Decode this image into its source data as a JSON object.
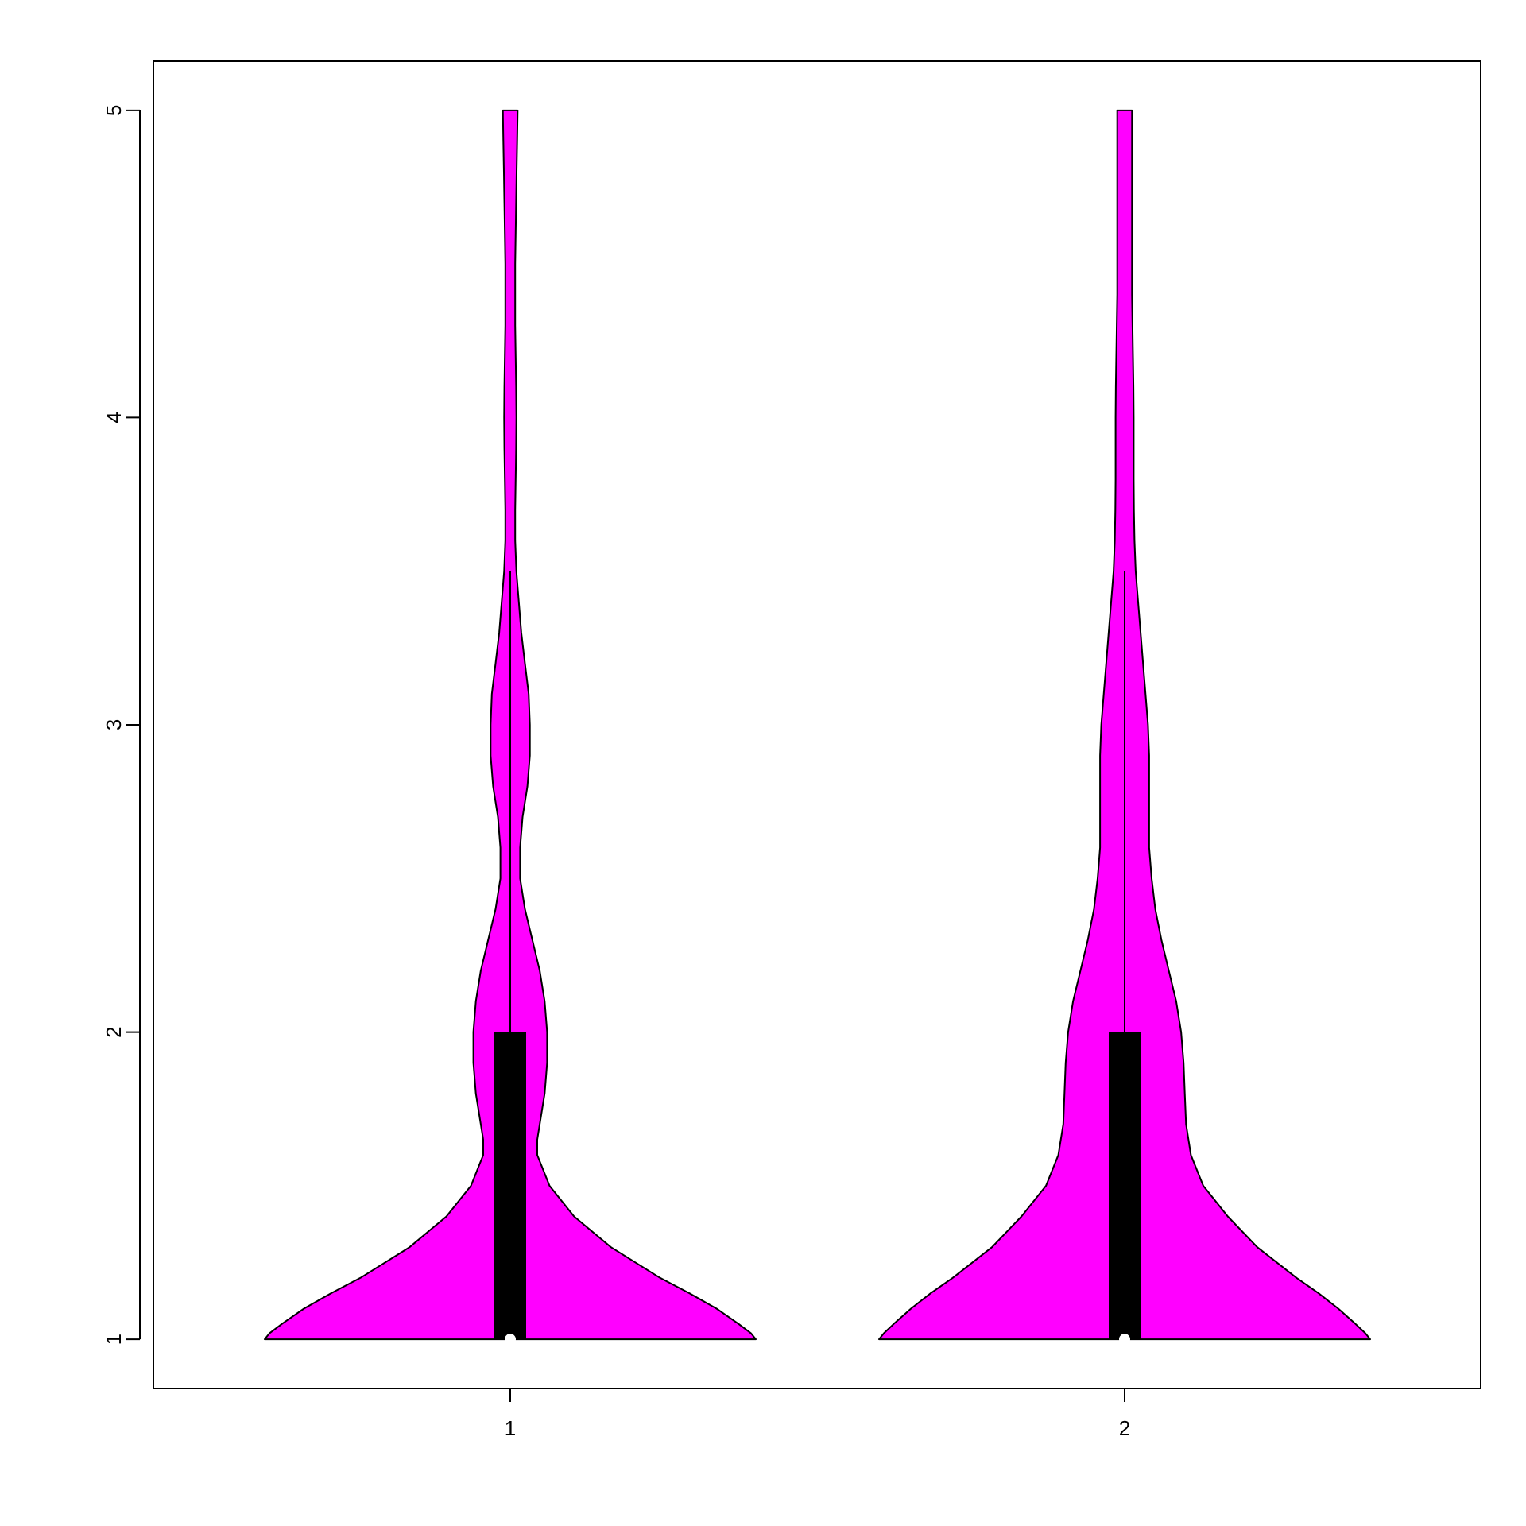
{
  "chart_data": {
    "type": "violin",
    "title": "",
    "xlabel": "",
    "ylabel": "",
    "categories": [
      "1",
      "2"
    ],
    "x_ticks": [
      "1",
      "2"
    ],
    "y_ticks": [
      "1",
      "2",
      "3",
      "4",
      "5"
    ],
    "ylim": [
      0.84,
      5.16
    ],
    "grid": false,
    "colors": {
      "fill": "#FF00FF",
      "outline": "#000000",
      "box": "#000000",
      "median": "#FFFFFF"
    },
    "series": [
      {
        "category": "1",
        "summary": {
          "min": 1,
          "q1": 1,
          "median": 1,
          "q3": 2,
          "whisker_high": 3.5,
          "max": 5
        },
        "density": [
          [
            1.0,
            1.0
          ],
          [
            1.02,
            0.98
          ],
          [
            1.05,
            0.93
          ],
          [
            1.1,
            0.84
          ],
          [
            1.15,
            0.73
          ],
          [
            1.2,
            0.61
          ],
          [
            1.3,
            0.41
          ],
          [
            1.4,
            0.26
          ],
          [
            1.5,
            0.16
          ],
          [
            1.6,
            0.11
          ],
          [
            1.65,
            0.11
          ],
          [
            1.7,
            0.12
          ],
          [
            1.8,
            0.14
          ],
          [
            1.9,
            0.15
          ],
          [
            2.0,
            0.15
          ],
          [
            2.1,
            0.14
          ],
          [
            2.2,
            0.12
          ],
          [
            2.3,
            0.09
          ],
          [
            2.4,
            0.06
          ],
          [
            2.5,
            0.04
          ],
          [
            2.6,
            0.04
          ],
          [
            2.7,
            0.05
          ],
          [
            2.8,
            0.07
          ],
          [
            2.9,
            0.08
          ],
          [
            3.0,
            0.08
          ],
          [
            3.1,
            0.075
          ],
          [
            3.2,
            0.06
          ],
          [
            3.3,
            0.045
          ],
          [
            3.4,
            0.035
          ],
          [
            3.5,
            0.025
          ],
          [
            3.6,
            0.02
          ],
          [
            3.7,
            0.02
          ],
          [
            3.8,
            0.022
          ],
          [
            3.9,
            0.024
          ],
          [
            4.0,
            0.025
          ],
          [
            4.1,
            0.024
          ],
          [
            4.2,
            0.022
          ],
          [
            4.3,
            0.02
          ],
          [
            4.4,
            0.02
          ],
          [
            4.5,
            0.02
          ],
          [
            4.6,
            0.022
          ],
          [
            4.7,
            0.024
          ],
          [
            4.8,
            0.026
          ],
          [
            4.9,
            0.028
          ],
          [
            5.0,
            0.03
          ]
        ]
      },
      {
        "category": "2",
        "summary": {
          "min": 1,
          "q1": 1,
          "median": 1,
          "q3": 2,
          "whisker_high": 3.5,
          "max": 5
        },
        "density": [
          [
            1.0,
            1.0
          ],
          [
            1.02,
            0.98
          ],
          [
            1.05,
            0.94
          ],
          [
            1.1,
            0.87
          ],
          [
            1.15,
            0.79
          ],
          [
            1.2,
            0.7
          ],
          [
            1.3,
            0.54
          ],
          [
            1.4,
            0.42
          ],
          [
            1.5,
            0.32
          ],
          [
            1.6,
            0.27
          ],
          [
            1.7,
            0.25
          ],
          [
            1.8,
            0.245
          ],
          [
            1.9,
            0.24
          ],
          [
            2.0,
            0.23
          ],
          [
            2.1,
            0.21
          ],
          [
            2.2,
            0.18
          ],
          [
            2.3,
            0.15
          ],
          [
            2.4,
            0.125
          ],
          [
            2.5,
            0.11
          ],
          [
            2.6,
            0.1
          ],
          [
            2.7,
            0.1
          ],
          [
            2.8,
            0.1
          ],
          [
            2.9,
            0.1
          ],
          [
            3.0,
            0.095
          ],
          [
            3.1,
            0.085
          ],
          [
            3.2,
            0.075
          ],
          [
            3.3,
            0.065
          ],
          [
            3.4,
            0.055
          ],
          [
            3.5,
            0.045
          ],
          [
            3.6,
            0.04
          ],
          [
            3.7,
            0.038
          ],
          [
            3.8,
            0.037
          ],
          [
            3.9,
            0.037
          ],
          [
            4.0,
            0.037
          ],
          [
            4.1,
            0.036
          ],
          [
            4.2,
            0.034
          ],
          [
            4.3,
            0.032
          ],
          [
            4.4,
            0.03
          ],
          [
            4.5,
            0.03
          ],
          [
            4.6,
            0.03
          ],
          [
            4.7,
            0.03
          ],
          [
            4.8,
            0.03
          ],
          [
            4.9,
            0.03
          ],
          [
            5.0,
            0.03
          ]
        ]
      }
    ]
  }
}
